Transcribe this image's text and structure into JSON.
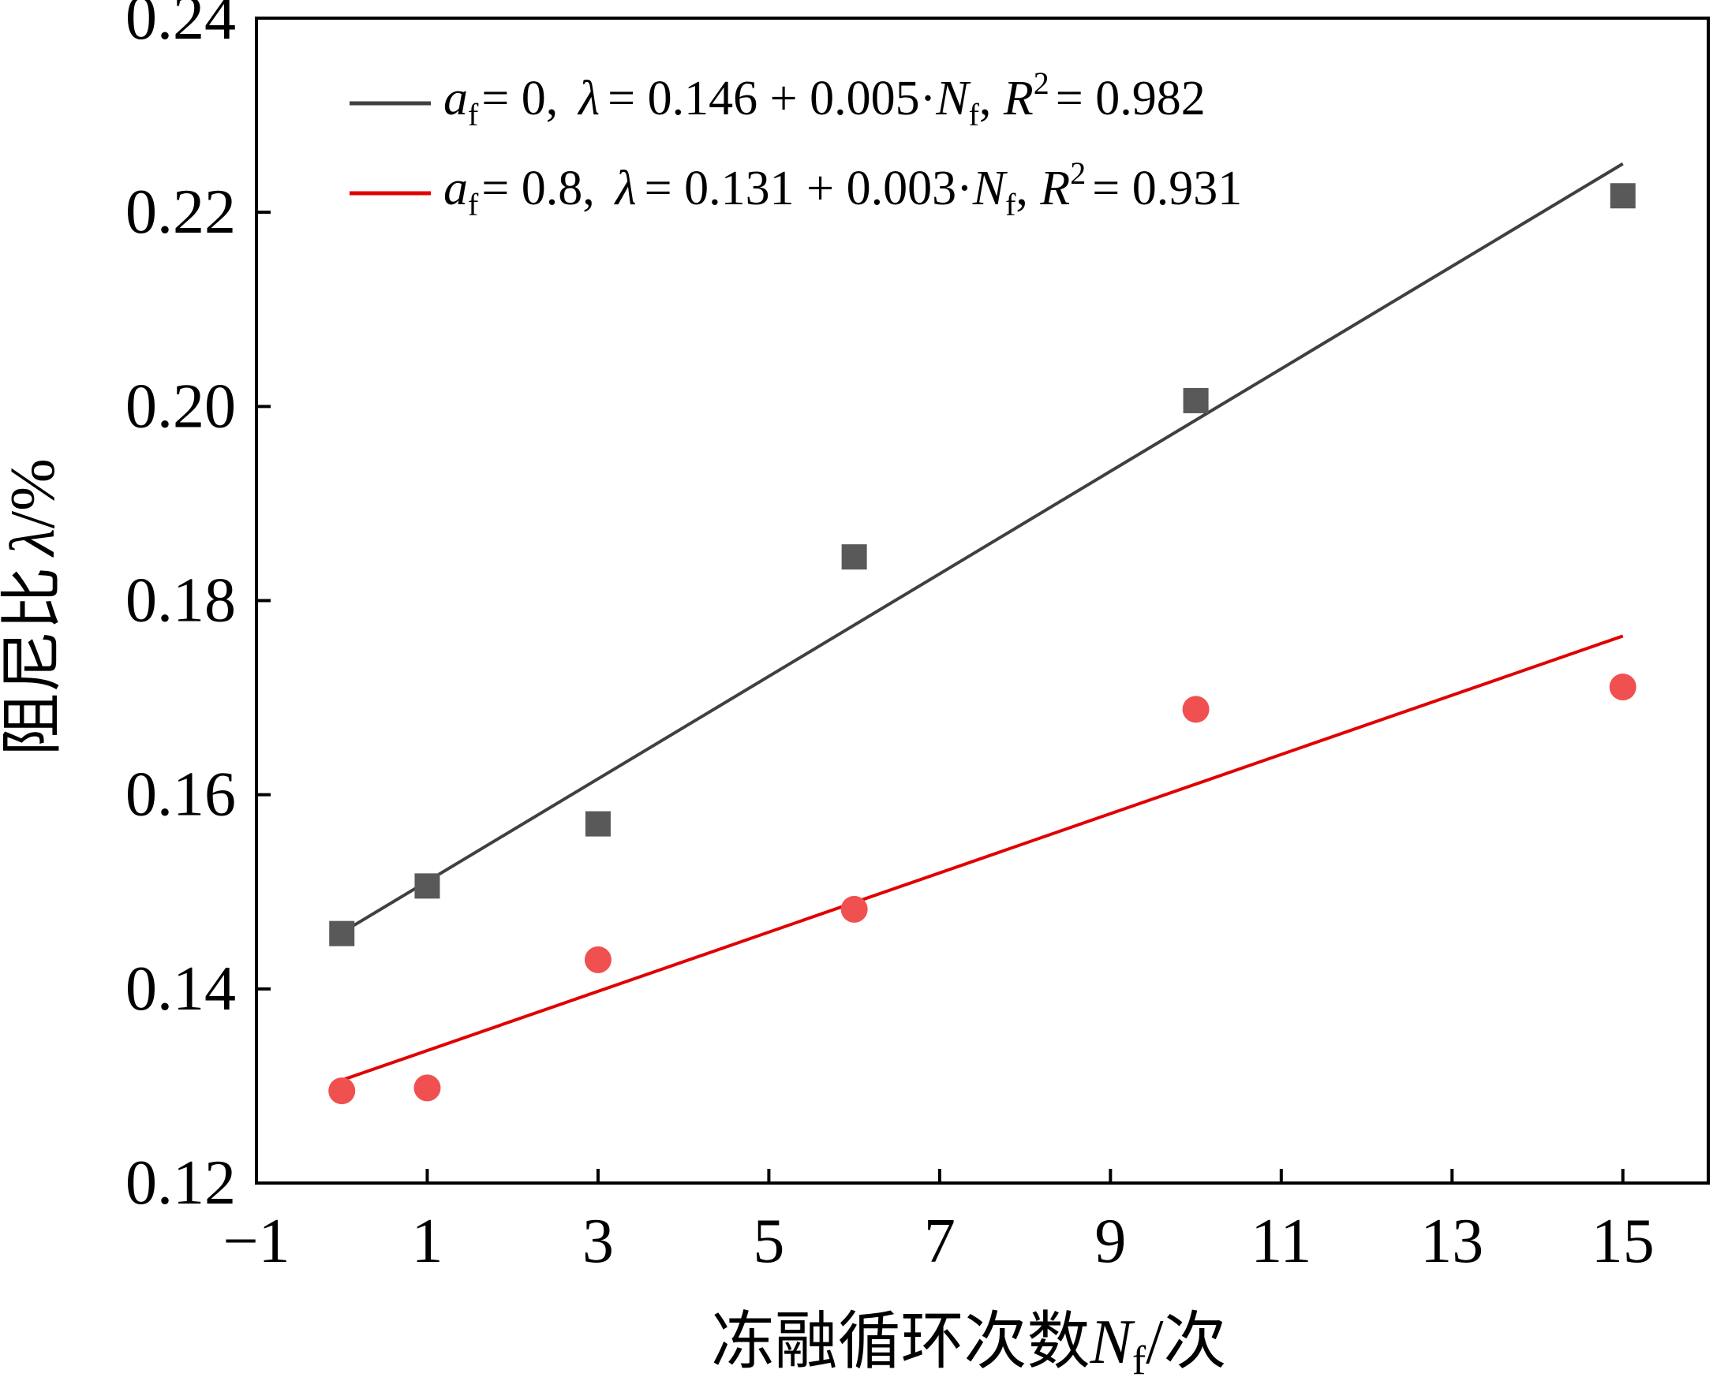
{
  "chart_data": {
    "type": "scatter",
    "title": "",
    "xlabel": "冻融循环次数",
    "xlabel_symbol": "N",
    "xlabel_sub": "f",
    "xlabel_unit": "/次",
    "ylabel": "阻尼比",
    "ylabel_symbol": "λ",
    "ylabel_unit": "/%",
    "xlim": [
      -1,
      16
    ],
    "ylim": [
      0.12,
      0.24
    ],
    "xticks": [
      -1,
      1,
      3,
      5,
      7,
      9,
      11,
      13,
      15
    ],
    "xtick_labels": [
      "−1",
      "1",
      "3",
      "5",
      "7",
      "9",
      "11",
      "13",
      "15"
    ],
    "yticks": [
      0.12,
      0.14,
      0.16,
      0.18,
      0.2,
      0.22,
      0.24
    ],
    "ytick_labels": [
      "0.12",
      "0.14",
      "0.16",
      "0.18",
      "0.20",
      "0.22",
      "0.24"
    ],
    "grid": false,
    "legend_position": "top-left",
    "series": [
      {
        "name": "a_f = 0",
        "marker": "square",
        "color": "#595959",
        "line_color": "#404040",
        "x": [
          0,
          1,
          3,
          6,
          10,
          15
        ],
        "y": [
          0.1457,
          0.1506,
          0.157,
          0.1845,
          0.2006,
          0.2217
        ],
        "fit": {
          "intercept": 0.1458,
          "slope": 0.00528,
          "x_range": [
            0,
            15
          ]
        },
        "legend": {
          "var": "a",
          "var_sub": "f",
          "eq_val": "= 0,",
          "lambda": "λ",
          "fit_text": "= 0.146 + 0.005·",
          "n": "N",
          "n_sub": "f",
          "r": "R",
          "r_sup": "2",
          "r_val": "= 0.982"
        }
      },
      {
        "name": "a_f = 0.8",
        "marker": "circle",
        "color": "#f05050",
        "line_color": "#e00000",
        "x": [
          0,
          1,
          3,
          6,
          10,
          15
        ],
        "y": [
          0.1295,
          0.1298,
          0.143,
          0.1482,
          0.1688,
          0.1711
        ],
        "fit": {
          "intercept": 0.1306,
          "slope": 0.00305,
          "x_range": [
            0,
            15
          ]
        },
        "legend": {
          "var": "a",
          "var_sub": "f",
          "eq_val": "= 0.8,",
          "lambda": "λ",
          "fit_text": "= 0.131 + 0.003·",
          "n": "N",
          "n_sub": "f",
          "r": "R",
          "r_sup": "2",
          "r_val": "= 0.931"
        }
      }
    ]
  }
}
